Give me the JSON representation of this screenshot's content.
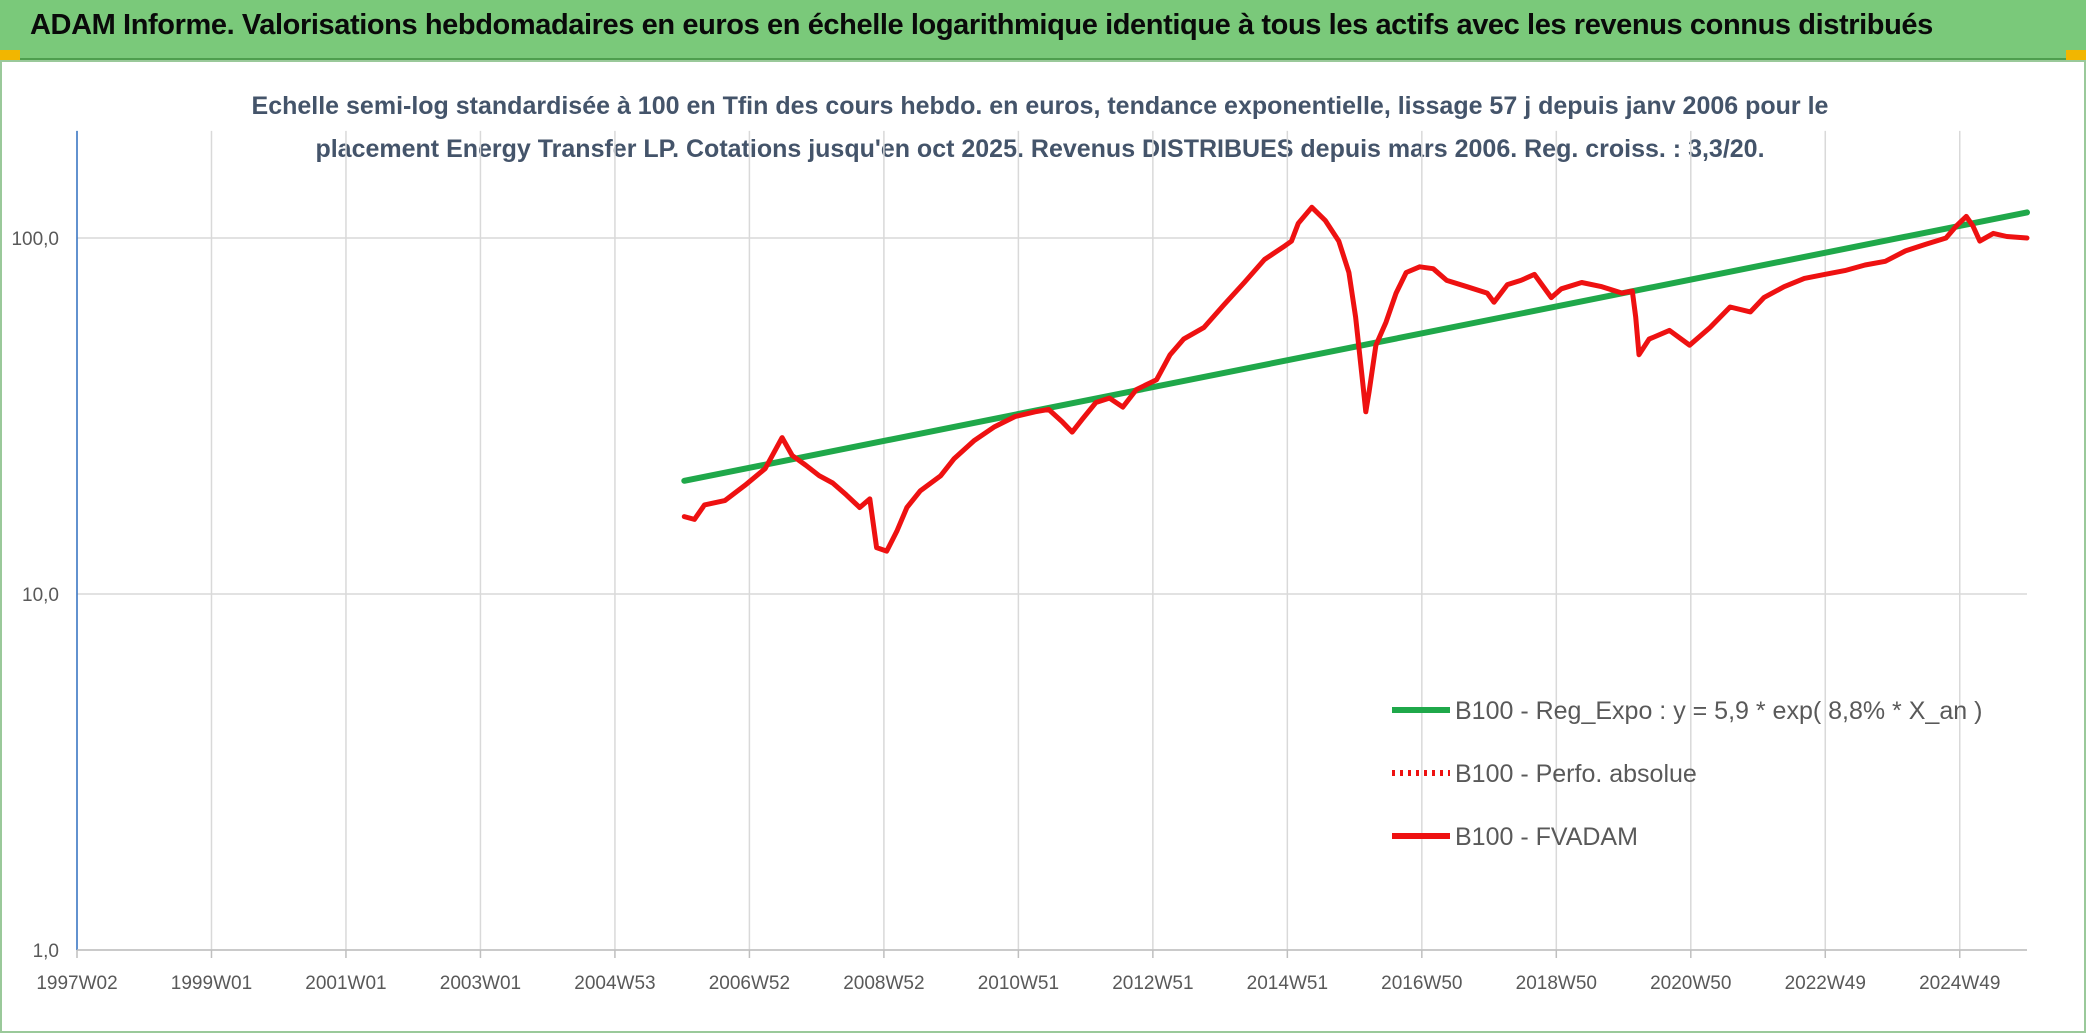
{
  "header": {
    "title": "ADAM Informe. Valorisations hebdomadaires en euros en échelle logarithmique identique à tous les actifs avec les revenus connus distribués",
    "background_color": "#7ac97a"
  },
  "chart_data": {
    "type": "line",
    "title_line1": "Echelle semi-log standardisée à 100 en Tfin des cours hebdo. en euros, tendance exponentielle, lissage 57 j depuis janv 2006 pour le",
    "title_line2": "placement Energy Transfer LP. Cotations jusqu'en oct 2025. Revenus DISTRIBUES depuis mars 2006. Reg. croiss. : 3,3/20.",
    "y_scale": "log",
    "ylim": [
      1,
      200
    ],
    "y_ticks": [
      "100,0",
      "10,0",
      "1,0"
    ],
    "xlim": [
      1997.0,
      2025.9
    ],
    "x_ticks": [
      "1997W02",
      "1999W01",
      "2001W01",
      "2003W01",
      "2004W53",
      "2006W52",
      "2008W52",
      "2010W51",
      "2012W51",
      "2014W51",
      "2016W50",
      "2018W50",
      "2020W50",
      "2022W49",
      "2024W49"
    ],
    "grid": true,
    "legend_position": "right-middle",
    "series": [
      {
        "name": "B100 - Reg_Expo : y = 5,9 * exp( 8,8% *  X_an )",
        "color": "#1fa84a",
        "style": "solid",
        "points": [
          [
            2006.0,
            20.8
          ],
          [
            2025.9,
            118
          ]
        ]
      },
      {
        "name": "B100 - Perfo. absolue",
        "color": "#ee1111",
        "style": "dotted",
        "points": []
      },
      {
        "name": "B100 - FVADAM",
        "color": "#ee1111",
        "style": "solid",
        "points": [
          [
            2006.0,
            16.5
          ],
          [
            2006.15,
            16.2
          ],
          [
            2006.3,
            17.8
          ],
          [
            2006.6,
            18.3
          ],
          [
            2006.9,
            20.2
          ],
          [
            2007.2,
            22.5
          ],
          [
            2007.45,
            27.5
          ],
          [
            2007.6,
            24.5
          ],
          [
            2007.8,
            23.0
          ],
          [
            2008.0,
            21.5
          ],
          [
            2008.2,
            20.5
          ],
          [
            2008.4,
            19.0
          ],
          [
            2008.6,
            17.5
          ],
          [
            2008.75,
            18.5
          ],
          [
            2008.85,
            13.5
          ],
          [
            2009.0,
            13.2
          ],
          [
            2009.15,
            15.0
          ],
          [
            2009.3,
            17.5
          ],
          [
            2009.5,
            19.5
          ],
          [
            2009.8,
            21.5
          ],
          [
            2010.0,
            24.0
          ],
          [
            2010.3,
            27.0
          ],
          [
            2010.6,
            29.5
          ],
          [
            2010.9,
            31.5
          ],
          [
            2011.2,
            32.5
          ],
          [
            2011.4,
            33.0
          ],
          [
            2011.6,
            30.5
          ],
          [
            2011.75,
            28.5
          ],
          [
            2011.9,
            31.0
          ],
          [
            2012.1,
            34.5
          ],
          [
            2012.3,
            35.5
          ],
          [
            2012.5,
            33.5
          ],
          [
            2012.7,
            37.5
          ],
          [
            2013.0,
            40.0
          ],
          [
            2013.2,
            47.0
          ],
          [
            2013.4,
            52.0
          ],
          [
            2013.7,
            56.0
          ],
          [
            2014.0,
            65.0
          ],
          [
            2014.3,
            75.0
          ],
          [
            2014.6,
            87.0
          ],
          [
            2014.9,
            95.0
          ],
          [
            2015.0,
            98.0
          ],
          [
            2015.1,
            110.0
          ],
          [
            2015.3,
            122.0
          ],
          [
            2015.5,
            112.0
          ],
          [
            2015.7,
            98.0
          ],
          [
            2015.85,
            80.0
          ],
          [
            2015.95,
            60.0
          ],
          [
            2016.05,
            40.0
          ],
          [
            2016.1,
            32.5
          ],
          [
            2016.15,
            37.0
          ],
          [
            2016.25,
            50.0
          ],
          [
            2016.4,
            58.0
          ],
          [
            2016.55,
            70.0
          ],
          [
            2016.7,
            80.0
          ],
          [
            2016.9,
            83.0
          ],
          [
            2017.1,
            82.0
          ],
          [
            2017.3,
            76.0
          ],
          [
            2017.6,
            73.0
          ],
          [
            2017.9,
            70.0
          ],
          [
            2018.0,
            66.0
          ],
          [
            2018.2,
            74.0
          ],
          [
            2018.4,
            76.0
          ],
          [
            2018.6,
            79.0
          ],
          [
            2018.85,
            68.0
          ],
          [
            2019.0,
            72.0
          ],
          [
            2019.3,
            75.0
          ],
          [
            2019.6,
            73.0
          ],
          [
            2019.9,
            70.0
          ],
          [
            2020.05,
            71.0
          ],
          [
            2020.1,
            60.0
          ],
          [
            2020.15,
            47.0
          ],
          [
            2020.3,
            52.0
          ],
          [
            2020.6,
            55.0
          ],
          [
            2020.9,
            50.0
          ],
          [
            2021.2,
            56.0
          ],
          [
            2021.5,
            64.0
          ],
          [
            2021.8,
            62.0
          ],
          [
            2022.0,
            68.0
          ],
          [
            2022.3,
            73.0
          ],
          [
            2022.6,
            77.0
          ],
          [
            2022.9,
            79.0
          ],
          [
            2023.2,
            81.0
          ],
          [
            2023.5,
            84.0
          ],
          [
            2023.8,
            86.0
          ],
          [
            2024.1,
            92.0
          ],
          [
            2024.4,
            96.0
          ],
          [
            2024.7,
            100.0
          ],
          [
            2024.85,
            108.0
          ],
          [
            2025.0,
            115.0
          ],
          [
            2025.1,
            108.0
          ],
          [
            2025.2,
            98.0
          ],
          [
            2025.4,
            103.0
          ],
          [
            2025.6,
            101.0
          ],
          [
            2025.9,
            100.0
          ]
        ]
      }
    ]
  }
}
